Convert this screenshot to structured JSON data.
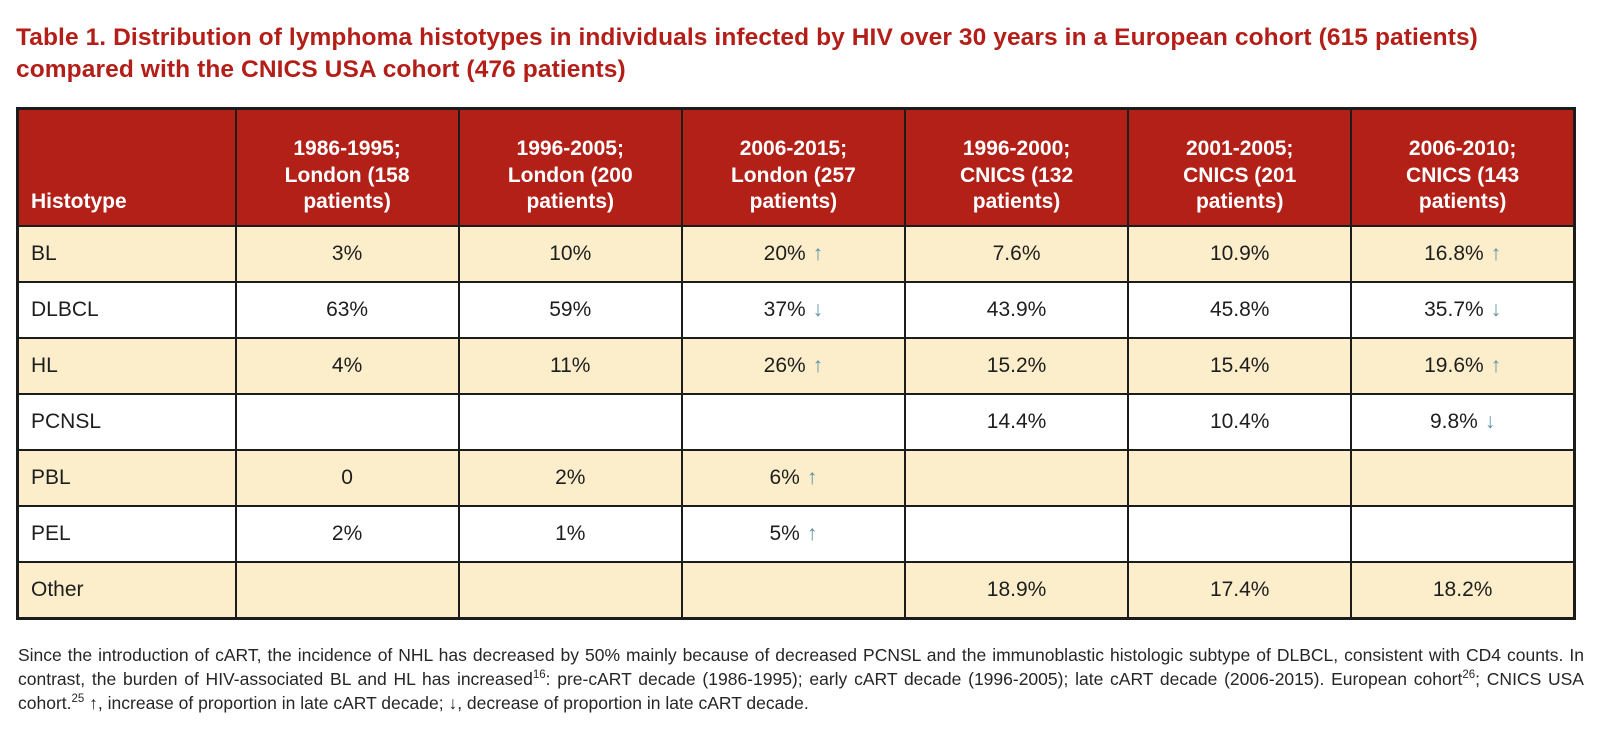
{
  "title": "Table 1. Distribution of lymphoma histotypes in individuals infected by HIV over 30 years in a European cohort (615 patients) compared with the CNICS USA cohort (476 patients)",
  "colors": {
    "header_bg": "#b22018",
    "title_red": "#b41e18",
    "row_alt_bg": "#fceeca",
    "row_bg": "#ffffff",
    "arrow": "#5a93a2",
    "border": "#1c1c1c"
  },
  "icons": {
    "up_arrow": "↑",
    "down_arrow": "↓"
  },
  "table": {
    "columns": [
      "Histotype",
      "1986-1995; London (158 patients)",
      "1996-2005; London (200 patients)",
      "2006-2015; London (257 patients)",
      "1996-2000; CNICS (132 patients)",
      "2001-2005; CNICS (201 patients)",
      "2006-2010; CNICS (143 patients)"
    ],
    "rows": [
      {
        "histotype": "BL",
        "values": [
          {
            "v": "3%"
          },
          {
            "v": "10%"
          },
          {
            "v": "20%",
            "arrow": "up"
          },
          {
            "v": "7.6%"
          },
          {
            "v": "10.9%"
          },
          {
            "v": "16.8%",
            "arrow": "up"
          }
        ]
      },
      {
        "histotype": "DLBCL",
        "values": [
          {
            "v": "63%"
          },
          {
            "v": "59%"
          },
          {
            "v": "37%",
            "arrow": "down"
          },
          {
            "v": "43.9%"
          },
          {
            "v": "45.8%"
          },
          {
            "v": "35.7%",
            "arrow": "down"
          }
        ]
      },
      {
        "histotype": "HL",
        "values": [
          {
            "v": "4%"
          },
          {
            "v": "11%"
          },
          {
            "v": "26%",
            "arrow": "up"
          },
          {
            "v": "15.2%"
          },
          {
            "v": "15.4%"
          },
          {
            "v": "19.6%",
            "arrow": "up"
          }
        ]
      },
      {
        "histotype": "PCNSL",
        "values": [
          {
            "v": ""
          },
          {
            "v": ""
          },
          {
            "v": ""
          },
          {
            "v": "14.4%"
          },
          {
            "v": "10.4%"
          },
          {
            "v": "9.8%",
            "arrow": "down"
          }
        ]
      },
      {
        "histotype": "PBL",
        "values": [
          {
            "v": "0"
          },
          {
            "v": "2%"
          },
          {
            "v": "6%",
            "arrow": "up"
          },
          {
            "v": ""
          },
          {
            "v": ""
          },
          {
            "v": ""
          }
        ]
      },
      {
        "histotype": "PEL",
        "values": [
          {
            "v": "2%"
          },
          {
            "v": "1%"
          },
          {
            "v": "5%",
            "arrow": "up"
          },
          {
            "v": ""
          },
          {
            "v": ""
          },
          {
            "v": ""
          }
        ]
      },
      {
        "histotype": "Other",
        "values": [
          {
            "v": ""
          },
          {
            "v": ""
          },
          {
            "v": ""
          },
          {
            "v": "18.9%"
          },
          {
            "v": "17.4%"
          },
          {
            "v": "18.2%"
          }
        ]
      }
    ]
  },
  "footnote": {
    "segments": [
      {
        "text": "Since the introduction of cART, the incidence of NHL has decreased by 50% mainly because of decreased PCNSL and the immunoblastic histologic subtype of DLBCL, consistent with CD4 counts. In contrast, the burden of HIV-associated BL and HL has increased",
        "sup": false
      },
      {
        "text": "16",
        "sup": true
      },
      {
        "text": ": pre-cART decade (1986-1995); early cART decade (1996-2005); late cART decade (2006-2015). European cohort",
        "sup": false
      },
      {
        "text": "26",
        "sup": true
      },
      {
        "text": "; CNICS USA cohort.",
        "sup": false
      },
      {
        "text": "25",
        "sup": true
      },
      {
        "text": " ↑, increase of proportion in late cART decade; ↓, decrease of proportion in late cART decade.",
        "sup": false
      }
    ]
  }
}
